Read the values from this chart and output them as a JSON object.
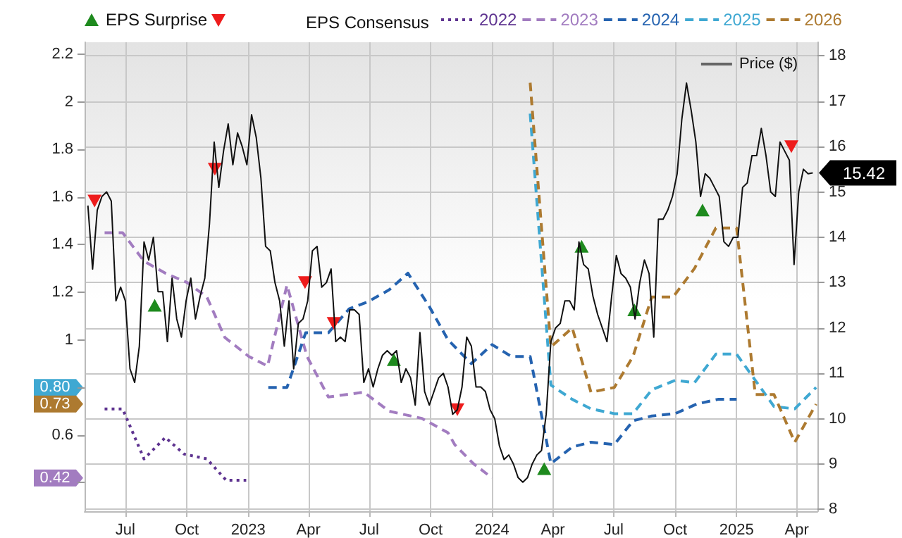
{
  "chart_data": {
    "type": "line",
    "legend_title": "EPS Consensus",
    "legend": "top",
    "grid": true,
    "annotations": [
      "0.80",
      "0.73",
      "0.42"
    ],
    "xlim": [
      "2022-05-01",
      "2025-05-02"
    ],
    "xticks": [
      {
        "value": "2022-07-01",
        "label": "Jul"
      },
      {
        "value": "2022-10-01",
        "label": "Oct"
      },
      {
        "value": "2023-01-01",
        "label": "2023"
      },
      {
        "value": "2023-04-01",
        "label": "Apr"
      },
      {
        "value": "2023-07-01",
        "label": "Jul"
      },
      {
        "value": "2023-10-01",
        "label": "Oct"
      },
      {
        "value": "2024-01-01",
        "label": "2024"
      },
      {
        "value": "2024-04-01",
        "label": "Apr"
      },
      {
        "value": "2024-07-01",
        "label": "Jul"
      },
      {
        "value": "2024-10-01",
        "label": "Oct"
      },
      {
        "value": "2025-01-01",
        "label": "2025"
      },
      {
        "value": "2025-04-01",
        "label": "Apr"
      }
    ],
    "ylim": [
      0.28,
      2.25
    ],
    "yticks": [
      {
        "value": 0.4,
        "label": null
      },
      0.6,
      {
        "value": 0.8,
        "label": null
      },
      1,
      1.2,
      1.4,
      1.6,
      1.8,
      2,
      2.2
    ],
    "y2lim": [
      7.96,
      18.3
    ],
    "y2ticks": [
      8,
      9,
      10,
      11,
      12,
      13,
      14,
      15,
      16,
      17,
      18
    ],
    "series": [
      {
        "name": "EPS Surprise",
        "type": "scatter",
        "axis": "y2",
        "marker": "triangle",
        "color": "#1e8a1e",
        "x": [
          "2022-08-14",
          "2023-08-07",
          "2024-03-19",
          "2024-05-14",
          "2024-08-01",
          "2024-11-11"
        ],
        "values": [
          12.5,
          11.3,
          8.9,
          13.8,
          12.4,
          14.6
        ]
      },
      {
        "type": "scatter",
        "axis": "y2",
        "marker": "triangle",
        "color": "#ee1c1c",
        "x": [
          "2022-05-16",
          "2022-11-12",
          "2023-03-27",
          "2023-05-09",
          "2023-11-10",
          "2025-03-24"
        ],
        "values": [
          14.8,
          15.5,
          13.0,
          12.1,
          10.2,
          16.0
        ]
      },
      {
        "name": "2022",
        "color": "#5e3390",
        "line_style": "dotted",
        "x": [
          "2022-05-31",
          "2022-06-27",
          "2022-07-29",
          "2022-08-30",
          "2022-09-27",
          "2022-10-31",
          "2022-11-29",
          "2022-12-29"
        ],
        "values": [
          0.71,
          0.71,
          0.5,
          0.59,
          0.52,
          0.5,
          0.41,
          0.41
        ]
      },
      {
        "name": "2023",
        "color": "#a27cc0",
        "line_style": "dashed",
        "x": [
          "2022-05-31",
          "2022-06-27",
          "2022-07-29",
          "2022-08-30",
          "2022-10-02",
          "2022-10-31",
          "2022-11-27",
          "2023-01-02",
          "2023-01-30",
          "2023-02-28",
          "2023-03-30",
          "2023-05-01",
          "2023-06-23",
          "2023-07-31",
          "2023-09-18",
          "2023-10-27",
          "2023-11-06",
          "2023-12-04",
          "2024-01-01"
        ],
        "values": [
          1.45,
          1.45,
          1.33,
          1.28,
          1.24,
          1.18,
          1.01,
          0.93,
          0.89,
          1.23,
          0.93,
          0.76,
          0.78,
          0.7,
          0.67,
          0.61,
          0.56,
          0.48,
          0.42
        ]
      },
      {
        "name": "2024",
        "color": "#2563b0",
        "line_style": "dashed",
        "x": [
          "2023-01-31",
          "2023-02-28",
          "2023-03-28",
          "2023-05-01",
          "2023-06-01",
          "2023-06-29",
          "2023-07-31",
          "2023-08-28",
          "2023-09-29",
          "2023-10-27",
          "2023-12-01",
          "2024-01-01",
          "2024-01-30",
          "2024-02-27",
          "2024-03-29",
          "2024-04-30",
          "2024-05-28",
          "2024-07-02",
          "2024-07-30",
          "2024-08-27",
          "2024-10-01",
          "2024-11-02",
          "2024-12-04",
          "2025-01-01"
        ],
        "values": [
          0.8,
          0.8,
          1.03,
          1.03,
          1.13,
          1.16,
          1.21,
          1.28,
          1.14,
          1.0,
          0.9,
          0.98,
          0.93,
          0.93,
          0.48,
          0.55,
          0.57,
          0.56,
          0.66,
          0.68,
          0.69,
          0.73,
          0.75,
          0.75
        ]
      },
      {
        "name": "2025",
        "color": "#3fa8d2",
        "line_style": "dashed",
        "x": [
          "2024-02-27",
          "2024-03-29",
          "2024-04-30",
          "2024-05-28",
          "2024-07-02",
          "2024-07-30",
          "2024-08-27",
          "2024-10-01",
          "2024-10-30",
          "2024-12-01",
          "2025-01-01",
          "2025-01-29",
          "2025-02-26",
          "2025-03-29",
          "2025-04-30"
        ],
        "values": [
          1.95,
          0.81,
          0.75,
          0.71,
          0.69,
          0.69,
          0.79,
          0.83,
          0.82,
          0.94,
          0.94,
          0.83,
          0.72,
          0.71,
          0.8
        ]
      },
      {
        "name": "2026",
        "color": "#ad7a30",
        "line_style": "dashed",
        "x": [
          "2024-02-27",
          "2024-03-29",
          "2024-04-30",
          "2024-05-28",
          "2024-07-02",
          "2024-07-30",
          "2024-08-27",
          "2024-09-28",
          "2024-10-30",
          "2024-12-01",
          "2025-01-01",
          "2025-01-29",
          "2025-02-26",
          "2025-03-29",
          "2025-04-30"
        ],
        "values": [
          2.08,
          0.97,
          1.05,
          0.78,
          0.8,
          0.93,
          1.18,
          1.18,
          1.3,
          1.47,
          1.47,
          0.77,
          0.77,
          0.57,
          0.73
        ]
      },
      {
        "name": "Price ($)",
        "axis": "y2",
        "color": "#111111",
        "line_style": "solid",
        "x": [
          "2022-05-06",
          "2022-05-13",
          "2022-05-20",
          "2022-05-27",
          "2022-06-03",
          "2022-06-10",
          "2022-06-17",
          "2022-06-24",
          "2022-07-01",
          "2022-07-08",
          "2022-07-15",
          "2022-07-22",
          "2022-07-29",
          "2022-08-05",
          "2022-08-12",
          "2022-08-19",
          "2022-08-26",
          "2022-09-02",
          "2022-09-09",
          "2022-09-16",
          "2022-09-23",
          "2022-09-30",
          "2022-10-07",
          "2022-10-14",
          "2022-10-21",
          "2022-10-28",
          "2022-11-04",
          "2022-11-11",
          "2022-11-18",
          "2022-11-25",
          "2022-12-02",
          "2022-12-09",
          "2022-12-16",
          "2022-12-23",
          "2022-12-30",
          "2023-01-06",
          "2023-01-13",
          "2023-01-20",
          "2023-01-27",
          "2023-02-03",
          "2023-02-10",
          "2023-02-17",
          "2023-02-24",
          "2023-03-03",
          "2023-03-10",
          "2023-03-17",
          "2023-03-24",
          "2023-03-31",
          "2023-04-07",
          "2023-04-14",
          "2023-04-21",
          "2023-04-28",
          "2023-05-05",
          "2023-05-12",
          "2023-05-19",
          "2023-05-26",
          "2023-06-02",
          "2023-06-09",
          "2023-06-16",
          "2023-06-23",
          "2023-06-30",
          "2023-07-07",
          "2023-07-14",
          "2023-07-21",
          "2023-07-28",
          "2023-08-04",
          "2023-08-11",
          "2023-08-18",
          "2023-08-25",
          "2023-09-01",
          "2023-09-08",
          "2023-09-15",
          "2023-09-22",
          "2023-09-29",
          "2023-10-06",
          "2023-10-13",
          "2023-10-20",
          "2023-10-27",
          "2023-11-03",
          "2023-11-10",
          "2023-11-17",
          "2023-11-24",
          "2023-12-01",
          "2023-12-08",
          "2023-12-15",
          "2023-12-22",
          "2023-12-29",
          "2024-01-05",
          "2024-01-12",
          "2024-01-19",
          "2024-01-26",
          "2024-02-02",
          "2024-02-09",
          "2024-02-16",
          "2024-02-23",
          "2024-03-01",
          "2024-03-08",
          "2024-03-15",
          "2024-03-22",
          "2024-03-29",
          "2024-04-05",
          "2024-04-12",
          "2024-04-19",
          "2024-04-26",
          "2024-05-03",
          "2024-05-10",
          "2024-05-17",
          "2024-05-24",
          "2024-05-31",
          "2024-06-07",
          "2024-06-14",
          "2024-06-21",
          "2024-06-28",
          "2024-07-05",
          "2024-07-12",
          "2024-07-19",
          "2024-07-26",
          "2024-08-02",
          "2024-08-09",
          "2024-08-16",
          "2024-08-23",
          "2024-08-30",
          "2024-09-06",
          "2024-09-13",
          "2024-09-20",
          "2024-09-27",
          "2024-10-04",
          "2024-10-11",
          "2024-10-18",
          "2024-10-25",
          "2024-11-01",
          "2024-11-08",
          "2024-11-15",
          "2024-11-22",
          "2024-11-29",
          "2024-12-06",
          "2024-12-13",
          "2024-12-20",
          "2024-12-27",
          "2025-01-03",
          "2025-01-10",
          "2025-01-17",
          "2025-01-24",
          "2025-01-31",
          "2025-02-07",
          "2025-02-14",
          "2025-02-21",
          "2025-02-28",
          "2025-03-07",
          "2025-03-14",
          "2025-03-21",
          "2025-03-28",
          "2025-04-04",
          "2025-04-11",
          "2025-04-18",
          "2025-04-25"
        ],
        "values": [
          14.7,
          13.3,
          14.6,
          14.9,
          15.0,
          14.8,
          12.6,
          12.9,
          12.6,
          11.1,
          10.8,
          11.6,
          13.9,
          13.5,
          14.0,
          12.8,
          12.8,
          11.7,
          13.1,
          12.2,
          11.8,
          12.6,
          13.1,
          12.2,
          12.7,
          13.1,
          14.3,
          16.1,
          15.1,
          15.9,
          16.5,
          15.6,
          16.3,
          16.0,
          15.6,
          16.7,
          16.2,
          15.3,
          13.8,
          13.7,
          13.0,
          12.6,
          11.6,
          12.6,
          11.1,
          12.1,
          12.2,
          12.6,
          13.7,
          13.8,
          12.9,
          13.0,
          13.3,
          11.7,
          11.8,
          11.7,
          12.4,
          12.4,
          12.3,
          10.8,
          11.1,
          10.7,
          11.1,
          11.4,
          11.5,
          11.4,
          11.5,
          10.8,
          11.1,
          10.9,
          10.3,
          11.9,
          10.6,
          10.3,
          10.6,
          10.9,
          11.0,
          10.7,
          10.1,
          10.2,
          10.7,
          11.8,
          11.6,
          10.7,
          10.7,
          10.6,
          10.2,
          10.0,
          9.4,
          9.1,
          9.2,
          9.0,
          8.7,
          8.6,
          8.7,
          9.0,
          9.2,
          9.3,
          10.1,
          11.7,
          12.0,
          12.1,
          12.6,
          12.6,
          12.4,
          13.9,
          13.4,
          13.3,
          12.7,
          12.3,
          12.0,
          11.7,
          12.7,
          13.6,
          13.2,
          13.1,
          12.9,
          12.2,
          13.0,
          13.5,
          13.2,
          11.8,
          14.4,
          14.4,
          14.6,
          14.9,
          15.4,
          16.6,
          17.4,
          16.8,
          16.1,
          14.9,
          15.4,
          15.3,
          15.1,
          14.9,
          13.9,
          13.8,
          14.0,
          14.0,
          15.1,
          15.2,
          15.8,
          15.8,
          16.4,
          15.8,
          15.0,
          14.9,
          16.1,
          15.9,
          15.7,
          13.4,
          15.0,
          15.5,
          15.4,
          15.42
        ],
        "value_labels": [
          null,
          null,
          null,
          null,
          null,
          null,
          null,
          null,
          null,
          null,
          null,
          null,
          null,
          null,
          null,
          null,
          null,
          null,
          null,
          null,
          null,
          null,
          null,
          null,
          null,
          null,
          null,
          null,
          null,
          null,
          null,
          null,
          null,
          null,
          null,
          null,
          null,
          null,
          null,
          null,
          null,
          null,
          null,
          null,
          null,
          null,
          null,
          null,
          null,
          null,
          null,
          null,
          null,
          null,
          null,
          null,
          null,
          null,
          null,
          null,
          null,
          null,
          null,
          null,
          null,
          null,
          null,
          null,
          null,
          null,
          null,
          null,
          null,
          null,
          null,
          null,
          null,
          null,
          null,
          null,
          null,
          null,
          null,
          null,
          null,
          null,
          null,
          null,
          null,
          null,
          null,
          null,
          null,
          null,
          null,
          null,
          null,
          null,
          null,
          null,
          null,
          null,
          null,
          null,
          null,
          null,
          null,
          null,
          null,
          null,
          null,
          null,
          null,
          null,
          null,
          null,
          null,
          null,
          null,
          null,
          null,
          null,
          null,
          null,
          null,
          null,
          null,
          null,
          null,
          null,
          null,
          null,
          null,
          null,
          null,
          null,
          null,
          null,
          null,
          null,
          null,
          null,
          null,
          null,
          null,
          null,
          null,
          null,
          null,
          null,
          null,
          null,
          null,
          null,
          null,
          "15.42"
        ]
      }
    ]
  }
}
